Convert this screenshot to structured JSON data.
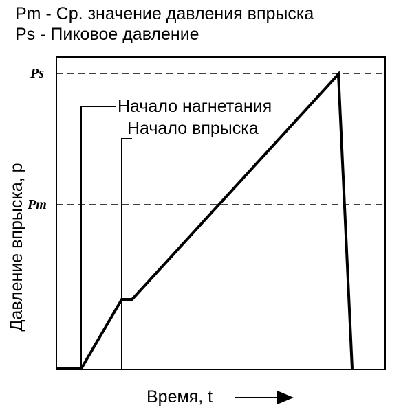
{
  "legend": [
    "Pm - Ср. значение давления впрыска",
    "Ps - Пиковое давление"
  ],
  "levels": {
    "ps": "Ps",
    "pm": "Pm"
  },
  "annotations": [
    "Начало нагнетания",
    "Начало впрыска"
  ],
  "axes": {
    "y_label": "Давление впрыска, р",
    "x_label": "Время, t"
  }
}
